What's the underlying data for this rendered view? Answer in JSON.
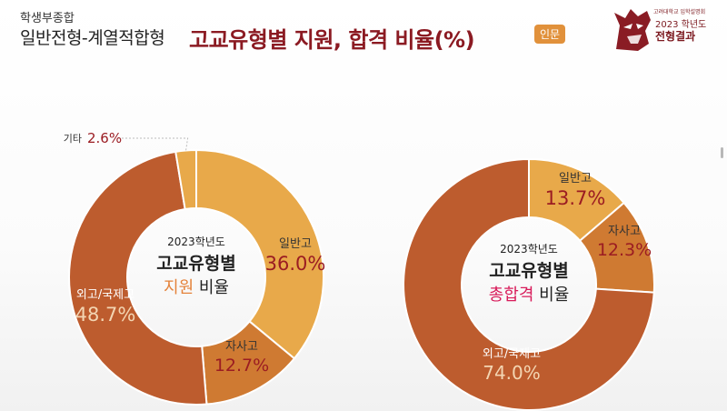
{
  "header": {
    "category": "학생부종합",
    "subtitle": "일반전형-계열적합형",
    "title": "고교유형별 지원, 합격 비율(%)",
    "badge": "인문"
  },
  "logo": {
    "university": "고려대학교 입학설명회",
    "year": "2023 학년도",
    "result": "전형결과",
    "icon": "tiger-icon"
  },
  "colors": {
    "light": "#e8a94a",
    "medium": "#cf7a32",
    "dark": "#bd5c2e",
    "red_text": "#9b1c22",
    "pink_text": "#d81b5a",
    "orange_text": "#e4823a",
    "light_text": "#f3d5b2"
  },
  "chart_data": [
    {
      "type": "pie",
      "center_lines": [
        "2023학년도",
        "고교유형별"
      ],
      "center_highlight": "지원",
      "center_suffix": "비율",
      "slices": [
        {
          "label": "일반고",
          "value": 36.0,
          "display": "36.0%",
          "color": "#e8a94a"
        },
        {
          "label": "자사고",
          "value": 12.7,
          "display": "12.7%",
          "color": "#cf7a32"
        },
        {
          "label": "외고/국제고",
          "value": 48.7,
          "display": "48.7%",
          "color": "#bd5c2e"
        },
        {
          "label": "기타",
          "value": 2.6,
          "display": "2.6%",
          "color": "#e8a94a"
        }
      ]
    },
    {
      "type": "pie",
      "center_lines": [
        "2023학년도",
        "고교유형별"
      ],
      "center_highlight": "총합격",
      "center_suffix": "비율",
      "slices": [
        {
          "label": "일반고",
          "value": 13.7,
          "display": "13.7%",
          "color": "#e8a94a"
        },
        {
          "label": "자사고",
          "value": 12.3,
          "display": "12.3%",
          "color": "#cf7a32"
        },
        {
          "label": "외고/국제고",
          "value": 74.0,
          "display": "74.0%",
          "color": "#bd5c2e"
        }
      ]
    }
  ]
}
